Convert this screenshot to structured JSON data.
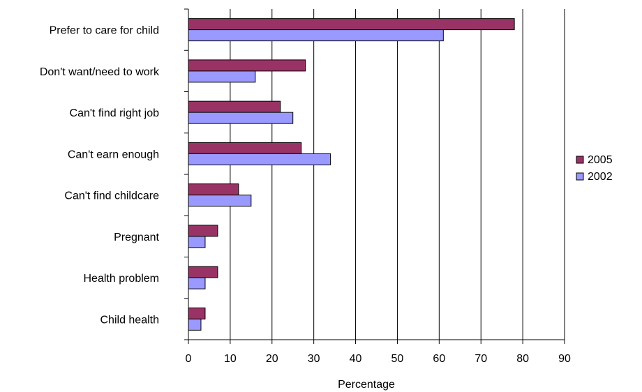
{
  "chart_data": {
    "type": "bar",
    "orientation": "horizontal",
    "title": "",
    "xlabel": "Percentage",
    "ylabel": "",
    "xlim": [
      0,
      90
    ],
    "x_ticks": [
      "0",
      "10",
      "20",
      "30",
      "40",
      "50",
      "60",
      "70",
      "80",
      "90"
    ],
    "grid": "vertical",
    "legend_position": "right",
    "categories": [
      "Prefer to care for child",
      "Don't want/need to work",
      "Can't find right job",
      "Can't earn enough",
      "Can't find childcare",
      "Pregnant",
      "Health problem",
      "Child health"
    ],
    "series": [
      {
        "name": "2005",
        "color": "#993366",
        "values": [
          78,
          28,
          22,
          27,
          12,
          7,
          7,
          4
        ]
      },
      {
        "name": "2002",
        "color": "#9999ff",
        "values": [
          61,
          16,
          25,
          34,
          15,
          4,
          4,
          3
        ]
      }
    ]
  }
}
